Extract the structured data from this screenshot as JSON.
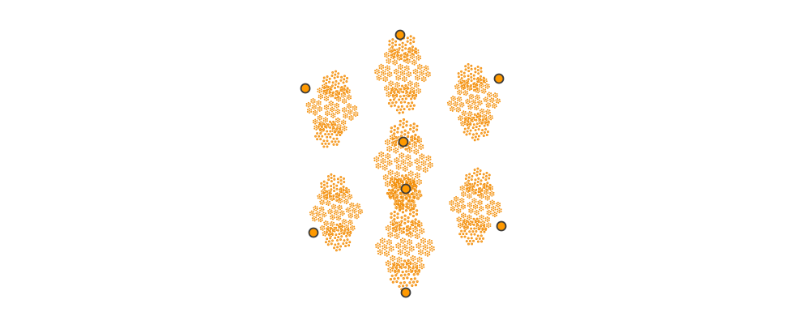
{
  "colors": {
    "background": "#ffffff",
    "fill": "#ff9900",
    "dot": "#f7a13a",
    "dot_stroke": "#f28c00",
    "marker_stroke": "#3a3a3a"
  },
  "fractal": {
    "depth": 3,
    "branches": 6,
    "ratio": 0.33
  }
}
